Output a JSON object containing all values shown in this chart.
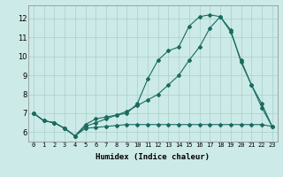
{
  "xlabel": "Humidex (Indice chaleur)",
  "background_color": "#cceae7",
  "grid_color": "#aacfcc",
  "line_color": "#1a6b60",
  "xlim": [
    -0.5,
    23.5
  ],
  "ylim": [
    5.5,
    12.7
  ],
  "yticks": [
    6,
    7,
    8,
    9,
    10,
    11,
    12
  ],
  "xticks": [
    0,
    1,
    2,
    3,
    4,
    5,
    6,
    7,
    8,
    9,
    10,
    11,
    12,
    13,
    14,
    15,
    16,
    17,
    18,
    19,
    20,
    21,
    22,
    23
  ],
  "series1_x": [
    0,
    1,
    2,
    3,
    4,
    5,
    6,
    7,
    8,
    9,
    10,
    11,
    12,
    13,
    14,
    15,
    16,
    17,
    18,
    19,
    20,
    21,
    22,
    23
  ],
  "series1_y": [
    7.0,
    6.6,
    6.5,
    6.2,
    5.8,
    6.2,
    6.25,
    6.3,
    6.35,
    6.4,
    6.4,
    6.4,
    6.4,
    6.4,
    6.4,
    6.4,
    6.4,
    6.4,
    6.4,
    6.4,
    6.4,
    6.4,
    6.4,
    6.3
  ],
  "series2_x": [
    0,
    1,
    2,
    3,
    4,
    5,
    6,
    7,
    8,
    9,
    10,
    11,
    12,
    13,
    14,
    15,
    16,
    17,
    18,
    19,
    20,
    21,
    22,
    23
  ],
  "series2_y": [
    7.0,
    6.6,
    6.5,
    6.2,
    5.8,
    6.3,
    6.5,
    6.7,
    6.9,
    7.1,
    7.4,
    7.7,
    8.0,
    8.5,
    9.0,
    9.8,
    10.5,
    11.5,
    12.1,
    11.4,
    9.7,
    8.5,
    7.3,
    6.3
  ],
  "series3_x": [
    0,
    1,
    2,
    3,
    4,
    5,
    6,
    7,
    8,
    9,
    10,
    11,
    12,
    13,
    14,
    15,
    16,
    17,
    18,
    19,
    20,
    21,
    22,
    23
  ],
  "series3_y": [
    7.0,
    6.6,
    6.5,
    6.2,
    5.8,
    6.4,
    6.7,
    6.8,
    6.9,
    7.0,
    7.5,
    8.8,
    9.8,
    10.3,
    10.5,
    11.6,
    12.1,
    12.2,
    12.1,
    11.3,
    9.8,
    8.5,
    7.5,
    6.3
  ]
}
